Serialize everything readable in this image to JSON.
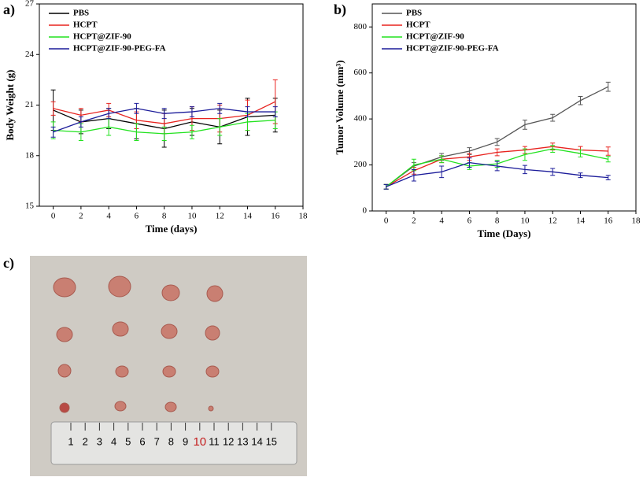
{
  "panel_labels": [
    "a)",
    "b)",
    "c)"
  ],
  "chart_data": [
    {
      "type": "line",
      "x_label": "Time (days)",
      "y_label": "Body Weight (g)",
      "x": [
        0,
        2,
        4,
        6,
        8,
        10,
        12,
        14,
        16
      ],
      "xlim": [
        -1,
        18
      ],
      "xticks": [
        0,
        2,
        4,
        6,
        8,
        10,
        12,
        14,
        16,
        18
      ],
      "ylim": [
        15,
        27
      ],
      "yticks": [
        15,
        18,
        21,
        24,
        27
      ],
      "series": [
        {
          "name": "PBS",
          "color": "#000000",
          "values": [
            20.7,
            20.0,
            20.2,
            19.9,
            19.6,
            20.0,
            19.7,
            20.3,
            20.4
          ],
          "errors": [
            1.2,
            0.7,
            0.6,
            0.9,
            1.1,
            0.8,
            1.0,
            1.1,
            1.0
          ]
        },
        {
          "name": "HCPT",
          "color": "#e8231f",
          "values": [
            20.8,
            20.4,
            20.7,
            20.1,
            19.9,
            20.2,
            20.2,
            20.4,
            21.2
          ],
          "errors": [
            0.4,
            0.4,
            0.4,
            0.5,
            0.6,
            0.7,
            0.8,
            0.9,
            1.3
          ]
        },
        {
          "name": "HCPT@ZIF-90",
          "color": "#22e21f",
          "values": [
            19.5,
            19.4,
            19.7,
            19.4,
            19.3,
            19.4,
            19.7,
            20.0,
            20.1
          ],
          "errors": [
            0.5,
            0.5,
            0.5,
            0.5,
            0.4,
            0.4,
            0.5,
            0.5,
            0.5
          ]
        },
        {
          "name": "HCPT@ZIF-90-PEG-FA",
          "color": "#1c1c9a",
          "values": [
            19.4,
            20.0,
            20.5,
            20.8,
            20.5,
            20.6,
            20.8,
            20.6,
            20.6
          ],
          "errors": [
            0.3,
            0.3,
            0.3,
            0.3,
            0.3,
            0.3,
            0.3,
            0.3,
            0.3
          ]
        }
      ]
    },
    {
      "type": "line",
      "x_label": "Time (Days)",
      "y_label": "Tumor Volume (mm³)",
      "x": [
        0,
        2,
        4,
        6,
        8,
        10,
        12,
        14,
        16
      ],
      "xlim": [
        -1,
        18
      ],
      "xticks": [
        0,
        2,
        4,
        6,
        8,
        10,
        12,
        14,
        16,
        18
      ],
      "ylim": [
        0,
        900
      ],
      "yticks": [
        0,
        200,
        400,
        600,
        800
      ],
      "series": [
        {
          "name": "PBS",
          "color": "#555555",
          "values": [
            105,
            195,
            235,
            260,
            300,
            375,
            405,
            480,
            540
          ],
          "errors": [
            10,
            15,
            15,
            15,
            15,
            20,
            15,
            18,
            20
          ]
        },
        {
          "name": "HCPT",
          "color": "#e8231f",
          "values": [
            105,
            175,
            225,
            235,
            255,
            265,
            280,
            265,
            260
          ],
          "errors": [
            10,
            15,
            15,
            15,
            15,
            15,
            15,
            15,
            18
          ]
        },
        {
          "name": "HCPT@ZIF-90",
          "color": "#22e21f",
          "values": [
            105,
            200,
            225,
            195,
            205,
            245,
            270,
            250,
            225
          ],
          "errors": [
            10,
            25,
            15,
            15,
            15,
            25,
            15,
            15,
            12
          ]
        },
        {
          "name": "HCPT@ZIF-90-PEG-FA",
          "color": "#1c1c9a",
          "values": [
            105,
            155,
            170,
            210,
            195,
            180,
            170,
            155,
            145
          ],
          "errors": [
            10,
            25,
            25,
            20,
            20,
            18,
            15,
            10,
            10
          ]
        }
      ]
    }
  ],
  "photo": {
    "ruler_labels": [
      "1",
      "2",
      "3",
      "4",
      "5",
      "6",
      "7",
      "8",
      "9",
      "10",
      "11",
      "12",
      "13",
      "14",
      "15"
    ]
  }
}
